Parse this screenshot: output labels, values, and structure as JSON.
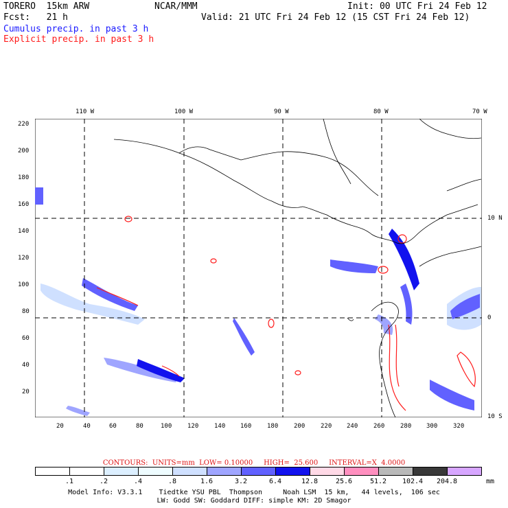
{
  "header": {
    "model": "TORERO  15km ARW",
    "org": "NCAR/MMM",
    "init": "Init: 00 UTC Fri 24 Feb 12",
    "fcst": "Fcst:   21 h",
    "valid": "Valid: 21 UTC Fri 24 Feb 12 (15 CST Fri 24 Feb 12)",
    "cumulus_label": "Cumulus precip. in past 3 h",
    "explicit_label": "Explicit precip. in past 3 h"
  },
  "map": {
    "lon_labels": [
      "110 W",
      "100 W",
      "90 W",
      "80 W",
      "70 W"
    ],
    "lat_labels": [
      "10 N",
      "0",
      "10 S"
    ],
    "x_ticks": [
      "20",
      "40",
      "60",
      "80",
      "100",
      "120",
      "140",
      "160",
      "180",
      "200",
      "220",
      "240",
      "260",
      "280",
      "300",
      "320"
    ],
    "y_ticks": [
      "220",
      "200",
      "180",
      "160",
      "140",
      "120",
      "100",
      "80",
      "60",
      "40",
      "20"
    ]
  },
  "contours": "CONTOURS:  UNITS=mm  LOW= 0.10000     HIGH=  25.600     INTERVAL=X  4.0000",
  "legend": {
    "labels": [
      ".1",
      ".2",
      ".4",
      ".8",
      "1.6",
      "3.2",
      "6.4",
      "12.8",
      "25.6",
      "51.2",
      "102.4",
      "204.8"
    ],
    "unit": "mm",
    "colors": [
      "#ffffff",
      "#ffffff",
      "#dcefff",
      "#eefcff",
      "#cfe0ff",
      "#9fa5ff",
      "#6161ff",
      "#1212ee",
      "#ffd9e6",
      "#ff8fbf",
      "#b9b9b9",
      "#383838",
      "#d7a6ff"
    ]
  },
  "footer": {
    "line1": "Model Info: V3.3.1    Tiedtke YSU PBL  Thompson     Noah LSM  15 km,   44 levels,  106 sec",
    "line2": "LW: Godd SW: Goddard DIFF: simple KM: 2D Smagor"
  }
}
